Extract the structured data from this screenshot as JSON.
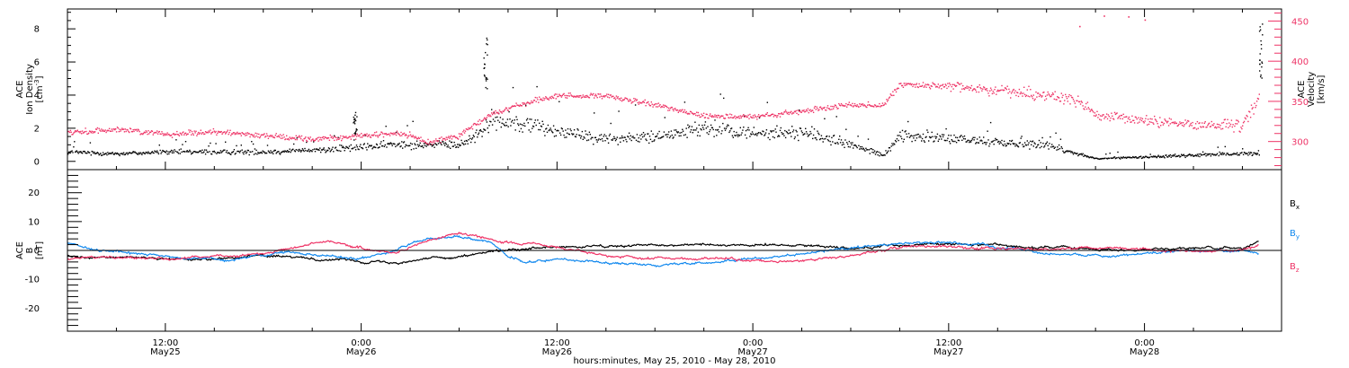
{
  "chart_data": [
    {
      "type": "scatter",
      "panel": "ion-density-velocity",
      "ylabel": "ACE Ion Density [cm-3]",
      "ylabel_lines": [
        "ACE",
        "Ion Density",
        "[cm",
        "-3",
        "]"
      ],
      "ylim": [
        -0.5,
        9.2
      ],
      "yticks": [
        0,
        2,
        4,
        6,
        8
      ],
      "y2label": "ACE Velocity [km/s]",
      "y2label_lines": [
        "ACE",
        "Velocity",
        "[km/s]"
      ],
      "y2lim": [
        265,
        465
      ],
      "y2ticks": [
        300,
        350,
        400,
        450
      ],
      "grid": false,
      "series": [
        {
          "name": "Ion Density",
          "axis": "left",
          "color": "#000000",
          "x_hours": [
            0,
            3,
            6,
            9,
            12,
            15,
            18,
            21,
            24,
            25,
            26,
            27,
            28,
            30,
            33,
            36,
            39,
            42,
            45,
            48,
            50,
            51,
            54,
            57,
            60,
            63,
            66,
            69,
            72,
            73
          ],
          "values": [
            0.6,
            0.5,
            0.6,
            0.6,
            0.6,
            0.7,
            0.9,
            1.1,
            1.0,
            1.6,
            2.5,
            2.4,
            2.3,
            1.9,
            1.4,
            1.5,
            2.0,
            1.7,
            1.8,
            1.0,
            0.4,
            1.6,
            1.4,
            1.2,
            1.0,
            0.2,
            0.3,
            0.4,
            0.5,
            0.5
          ],
          "spikes": [
            {
              "x_hours": 25.6,
              "value": 7.5
            },
            {
              "x_hours": 73.1,
              "value": 8.5
            },
            {
              "x_hours": 17.6,
              "value": 3.0
            }
          ]
        },
        {
          "name": "Velocity",
          "axis": "right",
          "color": "#ee3366",
          "x_hours": [
            0,
            3,
            6,
            9,
            12,
            15,
            18,
            20,
            21,
            22,
            24,
            25,
            26,
            28,
            30,
            33,
            36,
            39,
            42,
            45,
            48,
            50,
            51,
            54,
            57,
            60,
            62,
            63,
            66,
            69,
            72,
            73
          ],
          "values": [
            311,
            316,
            310,
            313,
            308,
            304,
            307,
            311,
            308,
            299,
            309,
            322,
            335,
            348,
            358,
            357,
            346,
            333,
            331,
            338,
            347,
            346,
            372,
            369,
            365,
            358,
            351,
            332,
            327,
            322,
            320,
            355
          ],
          "outliers_above": [
            {
              "x_hours": 62.0,
              "value": 444
            },
            {
              "x_hours": 63.5,
              "value": 457
            },
            {
              "x_hours": 65.0,
              "value": 456
            },
            {
              "x_hours": 66.0,
              "value": 452
            }
          ]
        }
      ]
    },
    {
      "type": "line",
      "panel": "magnetic-field",
      "ylabel": "ACE B [nT]",
      "ylabel_lines": [
        "ACE",
        "B",
        "[nT]"
      ],
      "ylim": [
        -28,
        28
      ],
      "yticks": [
        -20,
        -10,
        0,
        10,
        20
      ],
      "zero_line": true,
      "grid": false,
      "legend_position": "right",
      "series": [
        {
          "name": "Bx",
          "legend_main": "B",
          "legend_sub": "x",
          "color": "#000000",
          "x_hours": [
            0,
            6,
            12,
            16,
            20,
            24,
            27,
            30,
            33,
            36,
            40,
            44,
            48,
            52,
            56,
            60,
            64,
            68,
            72,
            73
          ],
          "values": [
            -2,
            -3,
            -2,
            -3,
            -4,
            -2,
            0,
            1,
            1,
            2,
            2,
            2,
            1,
            2,
            2,
            1,
            0,
            1,
            1,
            3
          ]
        },
        {
          "name": "By",
          "legend_main": "B",
          "legend_sub": "y",
          "color": "#1188ee",
          "x_hours": [
            0,
            2,
            6,
            10,
            12,
            14,
            18,
            20,
            22,
            24,
            26,
            27,
            28,
            30,
            33,
            36,
            40,
            44,
            48,
            52,
            56,
            60,
            64,
            68,
            72,
            73
          ],
          "values": [
            3,
            0,
            -2,
            -3,
            -2,
            -1,
            -3,
            0,
            4,
            5,
            3,
            -2,
            -4,
            -3,
            -4,
            -5,
            -4,
            -2,
            1,
            3,
            2,
            -1,
            -2,
            0,
            0,
            -1
          ]
        },
        {
          "name": "Bz",
          "legend_main": "B",
          "legend_sub": "z",
          "color": "#ee3366",
          "x_hours": [
            0,
            2,
            6,
            10,
            12,
            16,
            18,
            20,
            22,
            24,
            26,
            28,
            30,
            33,
            36,
            40,
            44,
            48,
            52,
            56,
            60,
            64,
            68,
            72,
            73
          ],
          "values": [
            -3,
            -2,
            -3,
            -2,
            -1,
            3,
            1,
            -1,
            3,
            6,
            4,
            2,
            1,
            -2,
            -3,
            -3,
            -4,
            -2,
            2,
            1,
            0,
            1,
            0,
            0,
            2
          ]
        }
      ]
    }
  ],
  "x_axis": {
    "range_hours": [
      0,
      74.4
    ],
    "ticks": [
      {
        "x_hours": 6,
        "label_time": "12:00",
        "label_day": "May25"
      },
      {
        "x_hours": 18,
        "label_time": "0:00",
        "label_day": "May26"
      },
      {
        "x_hours": 30,
        "label_time": "12:00",
        "label_day": "May26"
      },
      {
        "x_hours": 42,
        "label_time": "0:00",
        "label_day": "May27"
      },
      {
        "x_hours": 54,
        "label_time": "12:00",
        "label_day": "May27"
      },
      {
        "x_hours": 66,
        "label_time": "0:00",
        "label_day": "May28"
      }
    ],
    "xlabel": "hours:minutes, May 25, 2010 - May 28, 2010"
  }
}
